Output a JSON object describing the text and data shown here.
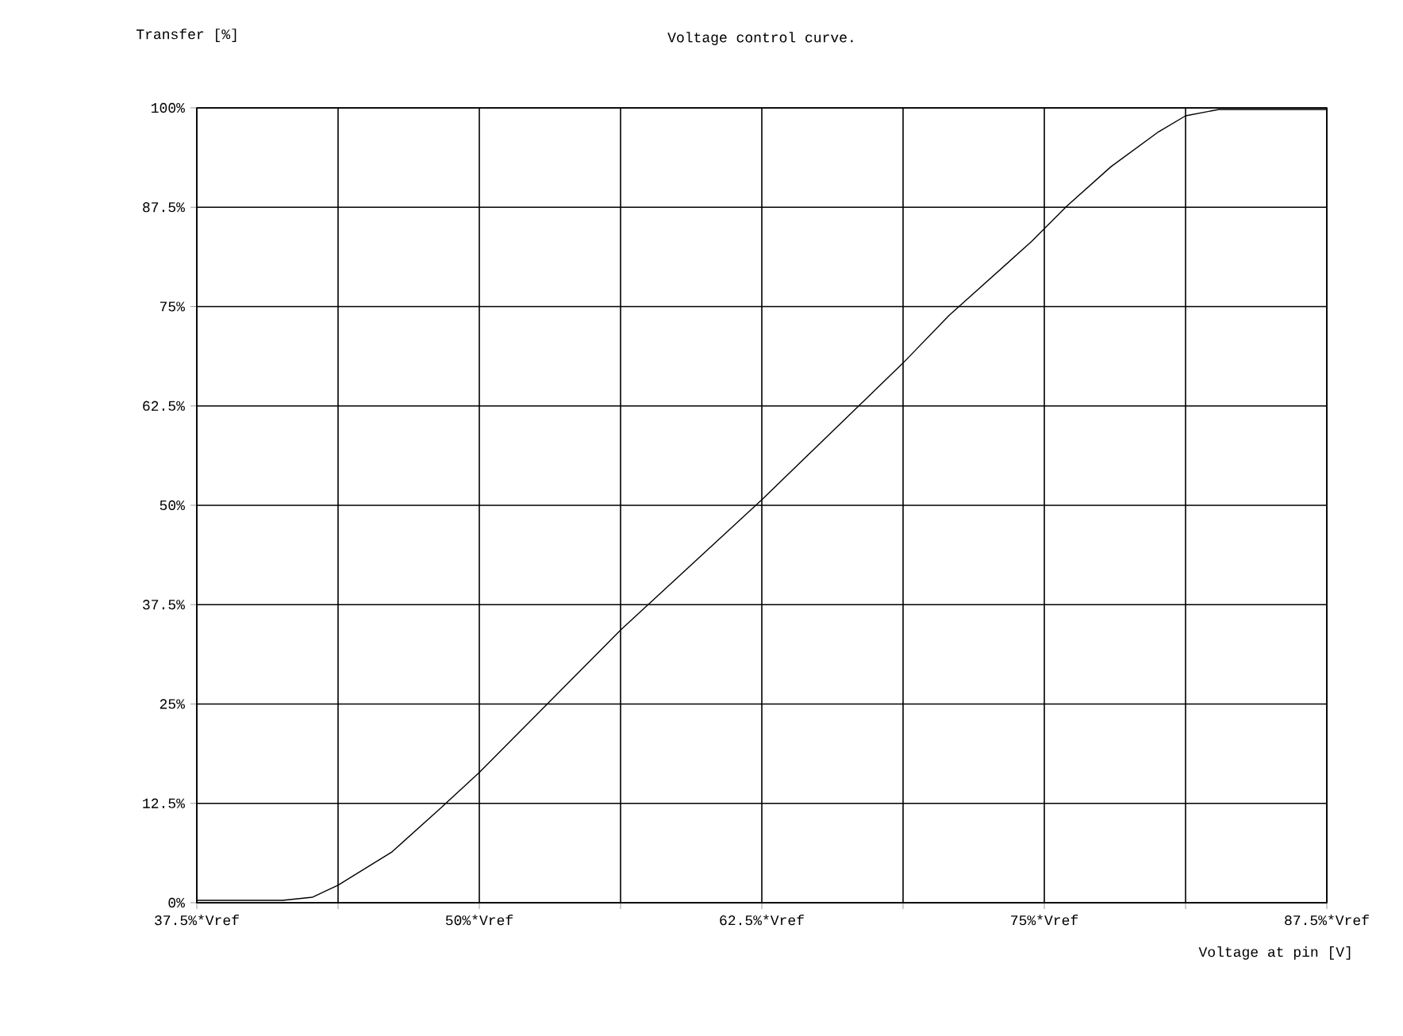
{
  "chart_data": {
    "type": "line",
    "title": "Voltage control curve.",
    "xlabel": "Voltage at pin [V]",
    "ylabel": "Transfer [%]",
    "x": [
      37.5,
      41.29,
      42.63,
      43.75,
      46.14,
      48.25,
      50,
      56.25,
      62.5,
      68.75,
      70.79,
      74.44,
      75.98,
      77.95,
      80.06,
      81.25,
      82.72,
      87.5
    ],
    "series": [
      {
        "color": "#000000",
        "values": [
          0.3,
          0.3,
          0.7,
          2.2,
          6.4,
          11.8,
          16.4,
          34.3,
          50.7,
          67.9,
          73.9,
          83.2,
          87.6,
          92.6,
          97,
          99,
          99.8,
          99.8
        ]
      }
    ],
    "xlim": [
      37.5,
      87.5
    ],
    "ylim": [
      0,
      100
    ],
    "xticks": [
      {
        "value": 37.5,
        "label": "37.5%*Vref"
      },
      {
        "value": 43.75,
        "label": null
      },
      {
        "value": 50,
        "label": "50%*Vref"
      },
      {
        "value": 56.25,
        "label": null
      },
      {
        "value": 62.5,
        "label": "62.5%*Vref"
      },
      {
        "value": 68.75,
        "label": null
      },
      {
        "value": 75,
        "label": "75%*Vref"
      },
      {
        "value": 81.25,
        "label": null
      },
      {
        "value": 87.5,
        "label": "87.5%*Vref"
      }
    ],
    "yticks": [
      {
        "value": 0,
        "label": "0%"
      },
      {
        "value": 12.5,
        "label": "12.5%"
      },
      {
        "value": 25,
        "label": "25%"
      },
      {
        "value": 37.5,
        "label": "37.5%"
      },
      {
        "value": 50,
        "label": "50%"
      },
      {
        "value": 62.5,
        "label": "62.5%"
      },
      {
        "value": 75,
        "label": "75%"
      },
      {
        "value": 87.5,
        "label": "87.5%"
      },
      {
        "value": 100,
        "label": "100%"
      }
    ],
    "grid": true,
    "marker": "none",
    "line_style": "solid"
  }
}
